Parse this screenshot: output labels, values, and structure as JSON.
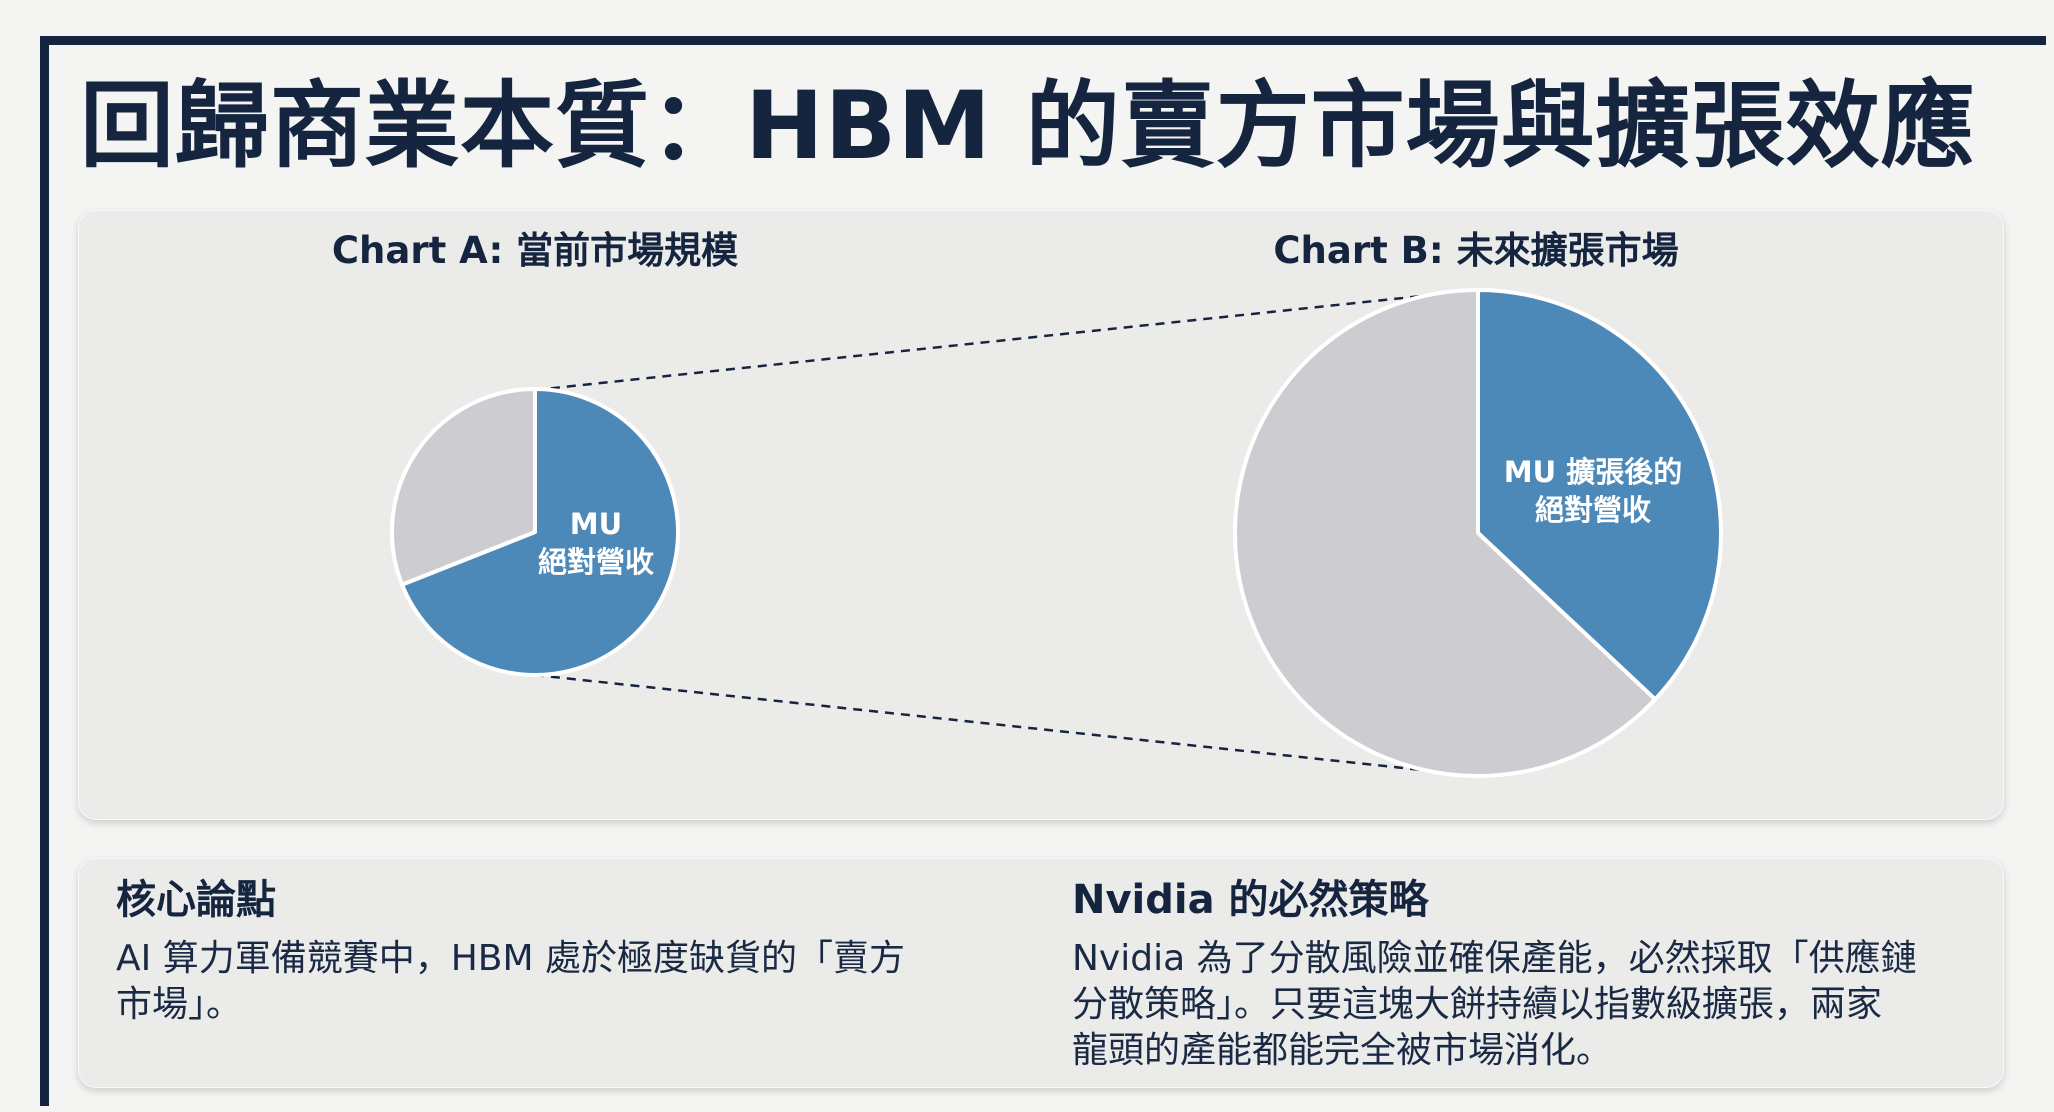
{
  "page": {
    "title": "回歸商業本質：HBM 的賣方市場與擴張效應",
    "colors": {
      "navy": "#15253f",
      "blue": "#4d89b8",
      "gray": "#cdcdd1",
      "panel": "#ebebea",
      "background": "#f4f4f2"
    }
  },
  "chart_data": [
    {
      "type": "pie",
      "title": "Chart A: 當前市場規模",
      "slices": [
        {
          "label": "MU 絕對營收",
          "value": 0.69,
          "color": "#4d89b8"
        },
        {
          "label": "",
          "value": 0.31,
          "color": "#cdcdd1"
        }
      ],
      "label_lines": [
        "MU",
        "絕對營收"
      ]
    },
    {
      "type": "pie",
      "title": "Chart B: 未來擴張市場",
      "slices": [
        {
          "label": "MU 擴張後的絕對營收",
          "value": 0.37,
          "color": "#4d89b8"
        },
        {
          "label": "",
          "value": 0.63,
          "color": "#cdcdd1"
        }
      ],
      "label_lines": [
        "MU 擴張後的",
        "絕對營收"
      ]
    }
  ],
  "panels": {
    "left": {
      "heading": "核心論點",
      "lines": [
        "AI 算力軍備競賽中，HBM 處於極度缺貨的「賣方",
        "市場」。"
      ]
    },
    "right": {
      "heading": "Nvidia 的必然策略",
      "lines": [
        "Nvidia 為了分散風險並確保產能，必然採取「供應鏈",
        "分散策略」。只要這塊大餅持續以指數級擴張，兩家",
        "龍頭的產能都能完全被市場消化。"
      ]
    }
  }
}
